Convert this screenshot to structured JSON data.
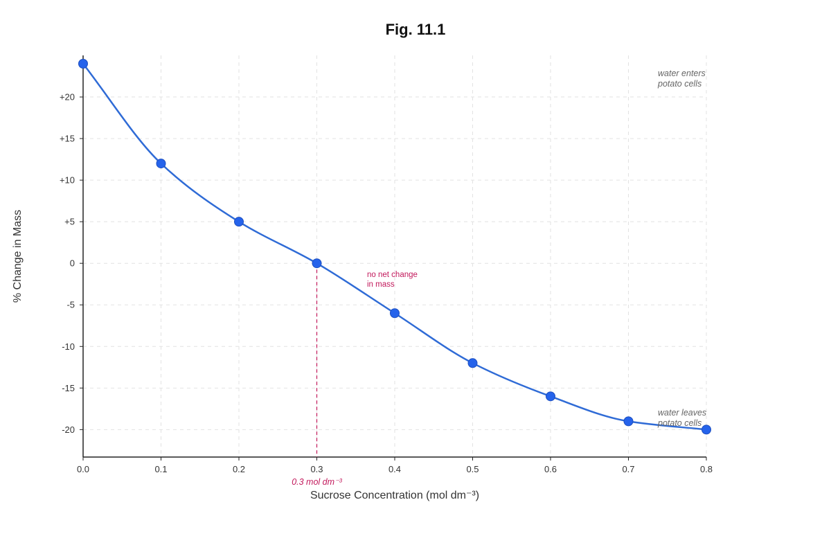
{
  "chart_data": {
    "type": "line",
    "title": "Fig. 11.1",
    "xlabel": "Sucrose Concentration (mol dm⁻³)",
    "ylabel": "% Change in Mass",
    "xlim": [
      0,
      0.8
    ],
    "ylim": [
      -23.3,
      25
    ],
    "x_ticks": [
      "0.0",
      "0.1",
      "0.2",
      "0.3",
      "0.4",
      "0.5",
      "0.6",
      "0.7",
      "0.8"
    ],
    "y_ticks": [
      {
        "value": 20,
        "label": "+20"
      },
      {
        "value": 15,
        "label": "+15"
      },
      {
        "value": 10,
        "label": "+10"
      },
      {
        "value": 5,
        "label": "+5"
      },
      {
        "value": 0,
        "label": "0"
      },
      {
        "value": -5,
        "label": "-5"
      },
      {
        "value": -10,
        "label": "-10"
      },
      {
        "value": -15,
        "label": "-15"
      },
      {
        "value": -20,
        "label": "-20"
      }
    ],
    "grid": true,
    "series": [
      {
        "x": [
          0.0,
          0.1,
          0.2,
          0.3,
          0.4,
          0.5,
          0.6,
          0.7,
          0.8
        ],
        "y": [
          24,
          12,
          5,
          0,
          -6,
          -12,
          -16,
          -19,
          -20
        ]
      }
    ],
    "annotations": {
      "top_right": [
        "water enters",
        "potato cells"
      ],
      "bottom_right": [
        "water leaves",
        "potato cells"
      ],
      "equilibrium_note": [
        "no net change",
        "in mass"
      ],
      "equilibrium_x": 0.3,
      "equilibrium_label": "0.3 mol dm⁻³"
    },
    "colors": {
      "line": "#2f6bd6",
      "marker": "#2563eb",
      "marker_edge": "#1e4fbf",
      "highlight": "#c2185b"
    }
  }
}
